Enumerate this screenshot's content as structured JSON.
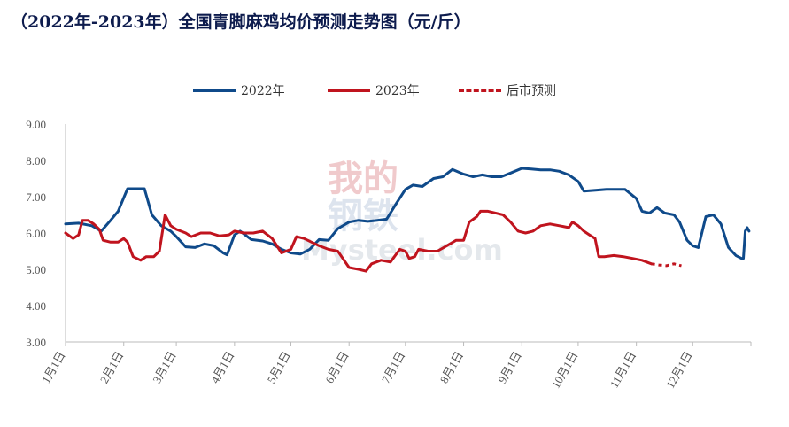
{
  "chart_data": {
    "type": "line",
    "title": "（2022年-2023年）全国青脚麻鸡均价预测走势图（元/斤）",
    "ylim": [
      3.0,
      9.0
    ],
    "yticks": [
      "3.00",
      "4.00",
      "5.00",
      "6.00",
      "7.00",
      "8.00",
      "9.00"
    ],
    "month_ticks": [
      "1月1日",
      "2月1日",
      "3月1日",
      "4月1日",
      "5月1日",
      "6月1日",
      "7月1日",
      "8月1日",
      "9月1日",
      "10月1日",
      "11月1日",
      "12月1日"
    ],
    "legend_position": "top",
    "grid": false,
    "series": [
      {
        "name": "2022年",
        "color": "#0f4a8a",
        "points": [
          [
            "1月1日",
            6.25
          ],
          [
            "1月8日",
            6.27
          ],
          [
            "1月15日",
            6.2
          ],
          [
            "1月20日",
            6.05
          ],
          [
            "1月25日",
            6.35
          ],
          [
            "1月29日",
            6.6
          ],
          [
            "2月3日",
            7.22
          ],
          [
            "2月12日",
            7.22
          ],
          [
            "2月16日",
            6.5
          ],
          [
            "2月21日",
            6.2
          ],
          [
            "2月26日",
            6.05
          ],
          [
            "3月1日",
            5.9
          ],
          [
            "3月6日",
            5.62
          ],
          [
            "3月11日",
            5.6
          ],
          [
            "3月16日",
            5.7
          ],
          [
            "3月21日",
            5.65
          ],
          [
            "3月26日",
            5.45
          ],
          [
            "3月28日",
            5.4
          ],
          [
            "4月1日",
            5.95
          ],
          [
            "4月4日",
            6.05
          ],
          [
            "4月10日",
            5.82
          ],
          [
            "4月16日",
            5.78
          ],
          [
            "4月21日",
            5.7
          ],
          [
            "4月26日",
            5.55
          ],
          [
            "5月1日",
            5.45
          ],
          [
            "5月6日",
            5.42
          ],
          [
            "5月11日",
            5.55
          ],
          [
            "5月16日",
            5.82
          ],
          [
            "5月21日",
            5.8
          ],
          [
            "5月26日",
            6.12
          ],
          [
            "6月1日",
            6.3
          ],
          [
            "6月6日",
            6.35
          ],
          [
            "6月11日",
            6.32
          ],
          [
            "6月16日",
            6.35
          ],
          [
            "6月21日",
            6.38
          ],
          [
            "6月26日",
            6.8
          ],
          [
            "7月1日",
            7.2
          ],
          [
            "7月5日",
            7.32
          ],
          [
            "7月10日",
            7.28
          ],
          [
            "7月16日",
            7.5
          ],
          [
            "7月21日",
            7.55
          ],
          [
            "7月26日",
            7.75
          ],
          [
            "8月1日",
            7.62
          ],
          [
            "8月6日",
            7.55
          ],
          [
            "8月11日",
            7.6
          ],
          [
            "8月16日",
            7.55
          ],
          [
            "8月21日",
            7.55
          ],
          [
            "8月26日",
            7.65
          ],
          [
            "9月1日",
            7.78
          ],
          [
            "9月6日",
            7.76
          ],
          [
            "9月11日",
            7.74
          ],
          [
            "9月16日",
            7.74
          ],
          [
            "9月21日",
            7.7
          ],
          [
            "9月26日",
            7.6
          ],
          [
            "10月1日",
            7.42
          ],
          [
            "10月4日",
            7.15
          ],
          [
            "10月11日",
            7.18
          ],
          [
            "10月16日",
            7.2
          ],
          [
            "10月21日",
            7.2
          ],
          [
            "10月26日",
            7.2
          ],
          [
            "11月1日",
            6.95
          ],
          [
            "11月4日",
            6.6
          ],
          [
            "11月8日",
            6.55
          ],
          [
            "11月12日",
            6.7
          ],
          [
            "11月16日",
            6.55
          ],
          [
            "11月21日",
            6.5
          ],
          [
            "11月24日",
            6.3
          ],
          [
            "11月28日",
            5.8
          ],
          [
            "12月1日",
            5.65
          ],
          [
            "12月4日",
            5.6
          ],
          [
            "12月8日",
            6.45
          ],
          [
            "12月12日",
            6.5
          ],
          [
            "12月16日",
            6.25
          ],
          [
            "12月20日",
            5.6
          ],
          [
            "12月24日",
            5.38
          ],
          [
            "12月27日",
            5.3
          ],
          [
            "12月28日",
            5.3
          ],
          [
            "12月29日",
            6.05
          ],
          [
            "12月30日",
            6.15
          ],
          [
            "12月31日",
            6.05
          ]
        ]
      },
      {
        "name": "2023年",
        "color": "#c0141e",
        "points": [
          [
            "1月1日",
            6.0
          ],
          [
            "1月5日",
            5.85
          ],
          [
            "1月8日",
            5.95
          ],
          [
            "1月10日",
            6.35
          ],
          [
            "1月13日",
            6.35
          ],
          [
            "1月16日",
            6.25
          ],
          [
            "1月19日",
            6.1
          ],
          [
            "1月21日",
            5.8
          ],
          [
            "1月25日",
            5.75
          ],
          [
            "1月29日",
            5.75
          ],
          [
            "2月1日",
            5.85
          ],
          [
            "2月3日",
            5.75
          ],
          [
            "2月6日",
            5.35
          ],
          [
            "2月10日",
            5.25
          ],
          [
            "2月13日",
            5.35
          ],
          [
            "2月17日",
            5.35
          ],
          [
            "2月20日",
            5.5
          ],
          [
            "2月23日",
            6.5
          ],
          [
            "2月26日",
            6.2
          ],
          [
            "3月1日",
            6.1
          ],
          [
            "3月6日",
            6.0
          ],
          [
            "3月9日",
            5.9
          ],
          [
            "3月14日",
            6.0
          ],
          [
            "3月19日",
            6.0
          ],
          [
            "3月24日",
            5.92
          ],
          [
            "3月29日",
            5.95
          ],
          [
            "4月1日",
            6.05
          ],
          [
            "4月6日",
            6.0
          ],
          [
            "4月11日",
            6.0
          ],
          [
            "4月16日",
            6.05
          ],
          [
            "4月21日",
            5.85
          ],
          [
            "4月26日",
            5.45
          ],
          [
            "5月1日",
            5.55
          ],
          [
            "5月4日",
            5.9
          ],
          [
            "5月8日",
            5.85
          ],
          [
            "5月12日",
            5.75
          ],
          [
            "5月16日",
            5.65
          ],
          [
            "5月21日",
            5.55
          ],
          [
            "5月26日",
            5.5
          ],
          [
            "6月1日",
            5.05
          ],
          [
            "6月6日",
            5.0
          ],
          [
            "6月10日",
            4.95
          ],
          [
            "6月13日",
            5.15
          ],
          [
            "6月18日",
            5.25
          ],
          [
            "6月23日",
            5.2
          ],
          [
            "6月28日",
            5.55
          ],
          [
            "7月1日",
            5.5
          ],
          [
            "7月3日",
            5.3
          ],
          [
            "7月6日",
            5.35
          ],
          [
            "7月8日",
            5.55
          ],
          [
            "7月13日",
            5.5
          ],
          [
            "7月18日",
            5.5
          ],
          [
            "7月23日",
            5.65
          ],
          [
            "7月28日",
            5.8
          ],
          [
            "8月1日",
            5.8
          ],
          [
            "8月4日",
            6.3
          ],
          [
            "8月8日",
            6.45
          ],
          [
            "8月10日",
            6.6
          ],
          [
            "8月14日",
            6.6
          ],
          [
            "8月18日",
            6.55
          ],
          [
            "8月22日",
            6.5
          ],
          [
            "8月26日",
            6.3
          ],
          [
            "8月30日",
            6.05
          ],
          [
            "9月3日",
            6.0
          ],
          [
            "9月7日",
            6.05
          ],
          [
            "9月11日",
            6.2
          ],
          [
            "9月16日",
            6.25
          ],
          [
            "9月21日",
            6.2
          ],
          [
            "9月26日",
            6.15
          ],
          [
            "9月28日",
            6.3
          ],
          [
            "10月1日",
            6.2
          ],
          [
            "10月4日",
            6.05
          ],
          [
            "10月7日",
            5.95
          ],
          [
            "10月10日",
            5.85
          ],
          [
            "10月12日",
            5.35
          ],
          [
            "10月15日",
            5.35
          ],
          [
            "10月20日",
            5.38
          ],
          [
            "10月25日",
            5.35
          ],
          [
            "10月30日",
            5.3
          ],
          [
            "11月4日",
            5.25
          ],
          [
            "11月9日",
            5.15
          ]
        ]
      },
      {
        "name": "后市预测",
        "color": "#c0141e",
        "dashed": true,
        "points": [
          [
            "11月9日",
            5.15
          ],
          [
            "11月13日",
            5.12
          ],
          [
            "11月17日",
            5.1
          ],
          [
            "11月21日",
            5.15
          ],
          [
            "11月25日",
            5.1
          ]
        ]
      }
    ],
    "watermark": {
      "cn": [
        "我的",
        "钢铁"
      ],
      "en": "Mysteel.com"
    }
  }
}
